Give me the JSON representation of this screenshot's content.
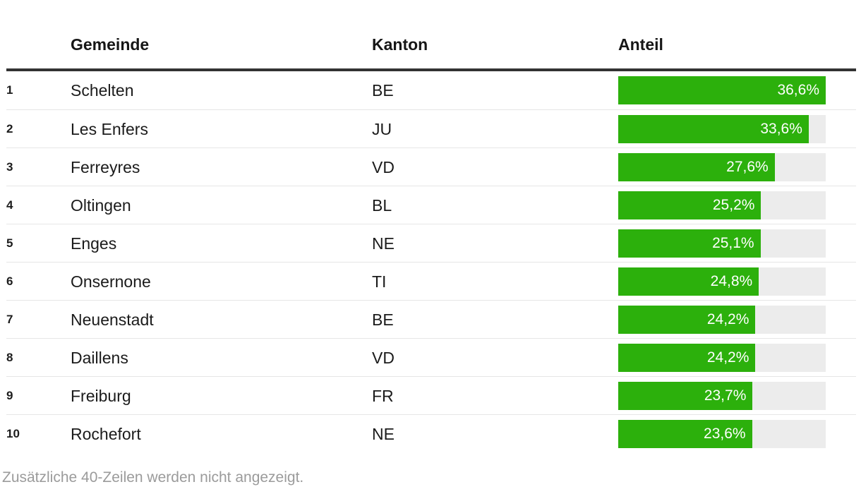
{
  "table": {
    "headers": {
      "rank": "",
      "gemeinde": "Gemeinde",
      "kanton": "Kanton",
      "anteil": "Anteil"
    },
    "bar_max": 36.6,
    "rows": [
      {
        "rank": "1",
        "gemeinde": "Schelten",
        "kanton": "BE",
        "value": 36.6,
        "label": "36,6%"
      },
      {
        "rank": "2",
        "gemeinde": "Les Enfers",
        "kanton": "JU",
        "value": 33.6,
        "label": "33,6%"
      },
      {
        "rank": "3",
        "gemeinde": "Ferreyres",
        "kanton": "VD",
        "value": 27.6,
        "label": "27,6%"
      },
      {
        "rank": "4",
        "gemeinde": "Oltingen",
        "kanton": "BL",
        "value": 25.2,
        "label": "25,2%"
      },
      {
        "rank": "5",
        "gemeinde": "Enges",
        "kanton": "NE",
        "value": 25.1,
        "label": "25,1%"
      },
      {
        "rank": "6",
        "gemeinde": "Onsernone",
        "kanton": "TI",
        "value": 24.8,
        "label": "24,8%"
      },
      {
        "rank": "7",
        "gemeinde": "Neuenstadt",
        "kanton": "BE",
        "value": 24.2,
        "label": "24,2%"
      },
      {
        "rank": "8",
        "gemeinde": "Daillens",
        "kanton": "VD",
        "value": 24.2,
        "label": "24,2%"
      },
      {
        "rank": "9",
        "gemeinde": "Freiburg",
        "kanton": "FR",
        "value": 23.7,
        "label": "23,7%"
      },
      {
        "rank": "10",
        "gemeinde": "Rochefort",
        "kanton": "NE",
        "value": 23.6,
        "label": "23,6%"
      }
    ]
  },
  "footer": {
    "note": "Zusätzliche 40-Zeilen werden nicht angezeigt."
  },
  "colors": {
    "bar_fill": "#2cb00c",
    "bar_track": "#ececec",
    "header_rule": "#333333",
    "row_divider": "#e6e6e6",
    "text": "#1b1b1b",
    "muted_text": "#9b9b9b"
  },
  "chart_data": {
    "type": "table",
    "title": "",
    "columns": [
      "",
      "Gemeinde",
      "Kanton",
      "Anteil"
    ],
    "rows": [
      [
        "1",
        "Schelten",
        "BE",
        36.6
      ],
      [
        "2",
        "Les Enfers",
        "JU",
        33.6
      ],
      [
        "3",
        "Ferreyres",
        "VD",
        27.6
      ],
      [
        "4",
        "Oltingen",
        "BL",
        25.2
      ],
      [
        "5",
        "Enges",
        "NE",
        25.1
      ],
      [
        "6",
        "Onsernone",
        "TI",
        24.8
      ],
      [
        "7",
        "Neuenstadt",
        "BE",
        24.2
      ],
      [
        "8",
        "Daillens",
        "VD",
        24.2
      ],
      [
        "9",
        "Freiburg",
        "FR",
        23.7
      ],
      [
        "10",
        "Rochefort",
        "NE",
        23.6
      ]
    ],
    "value_column": "Anteil",
    "value_unit": "%",
    "value_format": "decimal-comma",
    "bar_axis_max": 36.6,
    "annotation": "Zusätzliche 40-Zeilen werden nicht angezeigt."
  }
}
